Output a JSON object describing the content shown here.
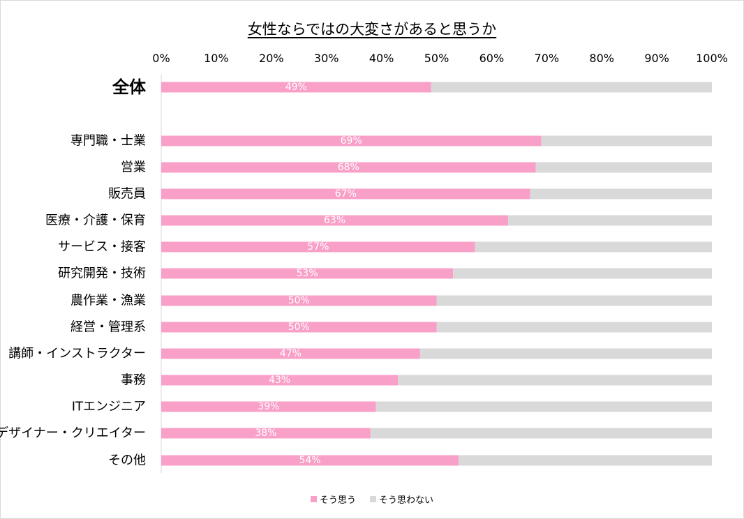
{
  "chart_data": {
    "type": "bar",
    "orientation": "horizontal",
    "stacked": true,
    "title": "女性ならではの大変さがあると思うか",
    "xlabel": "",
    "ylabel": "",
    "xlim": [
      0,
      100
    ],
    "ticks": [
      "0%",
      "10%",
      "20%",
      "30%",
      "40%",
      "50%",
      "60%",
      "70%",
      "80%",
      "90%",
      "100%"
    ],
    "tick_values": [
      0,
      10,
      20,
      30,
      40,
      50,
      60,
      70,
      80,
      90,
      100
    ],
    "grid": false,
    "legend_position": "bottom",
    "categories": [
      "全体",
      "専門職・士業",
      "営業",
      "販売員",
      "医療・介護・保育",
      "サービス・接客",
      "研究開発・技術",
      "農作業・漁業",
      "経営・管理系",
      "講師・インストラクター",
      "事務",
      "ITエンジニア",
      "デザイナー・クリエイター",
      "その他"
    ],
    "highlight_category": "全体",
    "highlight_color": "#ed6ba6",
    "series": [
      {
        "name": "そう思う",
        "color": "#f9a0c8",
        "values": [
          49,
          69,
          68,
          67,
          63,
          57,
          53,
          50,
          50,
          47,
          43,
          39,
          38,
          54
        ],
        "labels": [
          "49%",
          "69%",
          "68%",
          "67%",
          "63%",
          "57%",
          "53%",
          "50%",
          "50%",
          "47%",
          "43%",
          "39%",
          "38%",
          "54%"
        ],
        "label_color": "#ffffff"
      },
      {
        "name": "そう思わない",
        "color": "#d9d9d9",
        "values": [
          51,
          31,
          32,
          33,
          37,
          43,
          47,
          50,
          50,
          53,
          57,
          61,
          62,
          46
        ]
      }
    ]
  }
}
